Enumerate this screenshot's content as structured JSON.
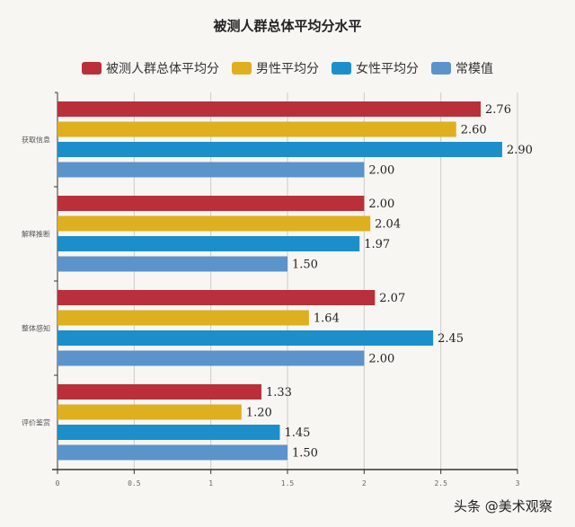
{
  "chart_data": {
    "type": "bar",
    "orientation": "horizontal",
    "title": "被测人群总体平均分水平",
    "categories": [
      "获取信息",
      "解释推断",
      "整体感知",
      "评价鉴赏"
    ],
    "series": [
      {
        "name": "被测人群总体平均分",
        "color": "#b9303a",
        "values": [
          2.76,
          2.0,
          2.07,
          1.33
        ]
      },
      {
        "name": "男性平均分",
        "color": "#deaf1f",
        "values": [
          2.6,
          2.04,
          1.64,
          1.2
        ]
      },
      {
        "name": "女性平均分",
        "color": "#1c8fcb",
        "values": [
          2.9,
          1.97,
          2.45,
          1.45
        ]
      },
      {
        "name": "常模值",
        "color": "#5b93cb",
        "values": [
          2.0,
          1.5,
          2.0,
          1.5
        ]
      }
    ],
    "xlim": [
      0,
      3
    ],
    "xticks": [
      "0",
      "0.5",
      "1",
      "1.5",
      "2",
      "2.5",
      "3"
    ],
    "grid": true,
    "legend": "top"
  },
  "watermark": "头条 @美术观察"
}
